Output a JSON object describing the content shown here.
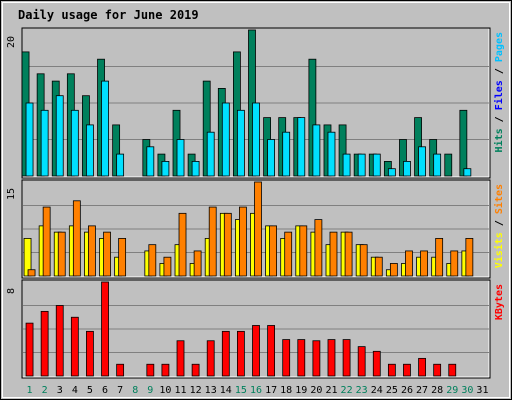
{
  "colors": {
    "frame_bg": "#c0c0c0",
    "plot_bg": "#c0c0c0",
    "gridline": "#808080",
    "hits": "#00805c",
    "files": "#00e0ff",
    "pages": "#00c0ff",
    "visits": "#ffff00",
    "sites": "#ff8000",
    "kbytes": "#ff0000",
    "title": "#0000ff",
    "weekend_label": "#00805c",
    "weekday_label": "#000080"
  },
  "chart_data": {
    "title": "Daily usage for June 2019",
    "type": "bar",
    "categories": [
      "1",
      "2",
      "3",
      "4",
      "5",
      "6",
      "7",
      "8",
      "9",
      "10",
      "11",
      "12",
      "13",
      "14",
      "15",
      "16",
      "17",
      "18",
      "19",
      "20",
      "21",
      "22",
      "23",
      "24",
      "25",
      "26",
      "27",
      "28",
      "29",
      "30",
      "31"
    ],
    "weekend_days": [
      "1",
      "2",
      "8",
      "9",
      "15",
      "16",
      "22",
      "23",
      "29",
      "30"
    ],
    "panels": [
      {
        "id": "hits-panel",
        "ymax_label": "20",
        "ymax": 20,
        "axis_labels": [
          {
            "text": "Hits",
            "color": "#00805c"
          },
          {
            "text": " / ",
            "color": "#000000"
          },
          {
            "text": "Files",
            "color": "#0000ff"
          },
          {
            "text": " / ",
            "color": "#000000"
          },
          {
            "text": "Pages",
            "color": "#00c0ff"
          }
        ],
        "series": [
          {
            "name": "Hits",
            "color": "#00805c",
            "values": [
              17,
              14,
              13,
              14,
              11,
              16,
              7,
              0,
              5,
              3,
              9,
              3,
              13,
              12,
              17,
              20,
              8,
              8,
              8,
              16,
              7,
              7,
              3,
              3,
              2,
              5,
              8,
              5,
              3,
              9,
              0
            ]
          },
          {
            "name": "Files",
            "color": "#00e0ff",
            "values": [
              10,
              9,
              11,
              9,
              7,
              13,
              3,
              0,
              4,
              2,
              5,
              2,
              6,
              10,
              9,
              10,
              5,
              6,
              8,
              7,
              6,
              3,
              3,
              3,
              1,
              2,
              4,
              3,
              0,
              1,
              0
            ]
          },
          {
            "name": "Pages",
            "color": "#00c0ff",
            "values": [
              0,
              0,
              0,
              0,
              0,
              0,
              0,
              0,
              0,
              0,
              0,
              0,
              0,
              0,
              0,
              0,
              0,
              0,
              0,
              0,
              0,
              0,
              0,
              0,
              0,
              0,
              0,
              0,
              0,
              0,
              0
            ]
          }
        ]
      },
      {
        "id": "visits-panel",
        "ymax_label": "15",
        "ymax": 15,
        "axis_labels": [
          {
            "text": "Visits",
            "color": "#ffff00"
          },
          {
            "text": " / ",
            "color": "#000000"
          },
          {
            "text": "Sites",
            "color": "#ff8000"
          }
        ],
        "series": [
          {
            "name": "Visits",
            "color": "#ffff00",
            "values": [
              6,
              8,
              7,
              8,
              7,
              6,
              3,
              0,
              4,
              2,
              5,
              2,
              6,
              10,
              9,
              10,
              8,
              6,
              8,
              7,
              5,
              7,
              5,
              3,
              1,
              2,
              3,
              3,
              2,
              4,
              0
            ]
          },
          {
            "name": "Sites",
            "color": "#ff8000",
            "values": [
              1,
              11,
              7,
              12,
              8,
              7,
              6,
              0,
              5,
              3,
              10,
              4,
              11,
              10,
              11,
              15,
              8,
              7,
              8,
              9,
              7,
              7,
              5,
              3,
              2,
              4,
              4,
              6,
              4,
              6,
              0
            ]
          }
        ]
      },
      {
        "id": "kbytes-panel",
        "ymax_label": "8",
        "ymax": 8,
        "axis_labels": [
          {
            "text": "KBytes",
            "color": "#ff0000"
          }
        ],
        "series": [
          {
            "name": "KBytes",
            "color": "#ff0000",
            "values": [
              4.5,
              5.5,
              6,
              5,
              3.8,
              8,
              1,
              0,
              1,
              1,
              3,
              1,
              3,
              3.8,
              3.8,
              4.3,
              4.3,
              3.1,
              3.1,
              3,
              3.1,
              3.1,
              2.5,
              2.1,
              1,
              1,
              1.5,
              1,
              1,
              0,
              0
            ]
          }
        ]
      }
    ]
  }
}
